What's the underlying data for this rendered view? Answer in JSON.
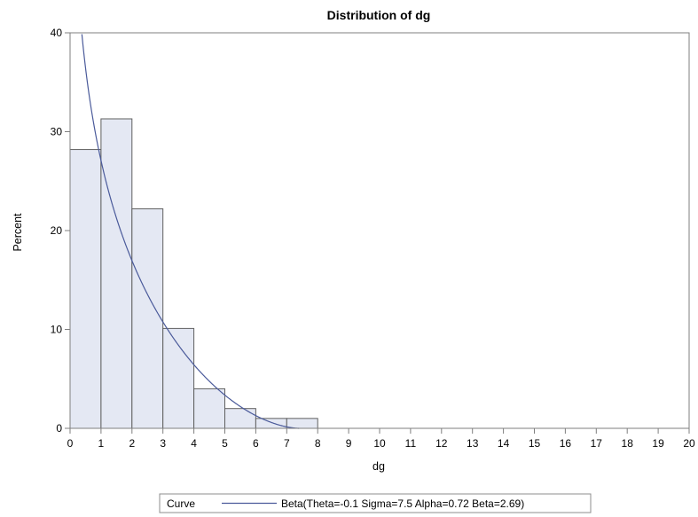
{
  "chart_data": {
    "type": "bar",
    "subtype": "histogram",
    "title": "Distribution of dg",
    "xlabel": "dg",
    "ylabel": "Percent",
    "xlim": [
      0,
      20
    ],
    "ylim": [
      0,
      40
    ],
    "x_ticks": [
      0,
      1,
      2,
      3,
      4,
      5,
      6,
      7,
      8,
      9,
      10,
      11,
      12,
      13,
      14,
      15,
      16,
      17,
      18,
      19,
      20
    ],
    "y_ticks": [
      0,
      10,
      20,
      30,
      40
    ],
    "bins": [
      {
        "start": 0,
        "end": 1,
        "value": 28.2
      },
      {
        "start": 1,
        "end": 2,
        "value": 31.3
      },
      {
        "start": 2,
        "end": 3,
        "value": 22.2
      },
      {
        "start": 3,
        "end": 4,
        "value": 10.1
      },
      {
        "start": 4,
        "end": 5,
        "value": 4.0
      },
      {
        "start": 5,
        "end": 6,
        "value": 2.0
      },
      {
        "start": 6,
        "end": 7,
        "value": 1.0
      },
      {
        "start": 7,
        "end": 8,
        "value": 1.0
      }
    ],
    "curve": {
      "label": "Beta(Theta=-0.1 Sigma=7.5 Alpha=0.72 Beta=2.69)",
      "theta": -0.1,
      "sigma": 7.5,
      "alpha": 0.72,
      "beta": 2.69,
      "bin_width": 1
    },
    "legend": {
      "title": "Curve",
      "placement": "bottom"
    },
    "grid": false,
    "colors": {
      "bar_fill": "#e4e8f3",
      "bar_stroke": "#5f5f5f",
      "curve": "#4a5a9a",
      "axis": "#7f7f7f"
    }
  }
}
